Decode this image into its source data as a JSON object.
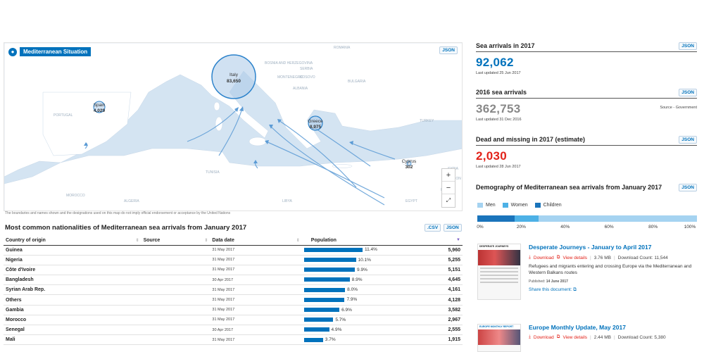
{
  "map": {
    "title": "Mediterranean Situation",
    "json_label": "JSON ",
    "disclaimer": "The boundaries and names shown and the designations used on this map do not imply official endorsement or acceptance by the United Nations",
    "zoom_in": "+",
    "zoom_out": "−",
    "fullscreen": "⤢",
    "country_labels": [
      "ROMANIA",
      "BOSNIA AND HERZEGOVINA",
      "SERBIA",
      "BULGARIA",
      "MONTENEGRO",
      "KOSOVO",
      "ALBANIA",
      "TURKEY",
      "PORTUGAL",
      "TUNISIA",
      "MOROCCO",
      "ALGERIA",
      "LIBYA",
      "EGYPT",
      "SYRIA",
      "LEBANON",
      "ISRAEL"
    ],
    "bubbles": [
      {
        "name": "Italy",
        "value": "83,650"
      },
      {
        "name": "Spain",
        "value": "4,029"
      },
      {
        "name": "Greece",
        "value": "8,975"
      },
      {
        "name": "Cyprus",
        "value": "302"
      }
    ]
  },
  "table": {
    "title": "Most common nationalities of Mediterranean sea arrivals from January 2017",
    "csv_label": ".CSV ",
    "json_label": "JSON ",
    "headers": {
      "country": "Country of origin",
      "source": "Source",
      "date": "Data date",
      "population": "Population"
    },
    "rows": [
      {
        "country": "Guinea",
        "date": "31 May 2017",
        "pct": "11.4%",
        "pct_value": 11.4,
        "pop": "5,960"
      },
      {
        "country": "Nigeria",
        "date": "31 May 2017",
        "pct": "10.1%",
        "pct_value": 10.1,
        "pop": "5,255"
      },
      {
        "country": "Côte d'Ivoire",
        "date": "31 May 2017",
        "pct": "9.9%",
        "pct_value": 9.9,
        "pop": "5,151"
      },
      {
        "country": "Bangladesh",
        "date": "30 Apr 2017",
        "pct": "8.9%",
        "pct_value": 8.9,
        "pop": "4,645"
      },
      {
        "country": "Syrian Arab Rep.",
        "date": "31 May 2017",
        "pct": "8.0%",
        "pct_value": 8.0,
        "pop": "4,161"
      },
      {
        "country": "Others",
        "date": "31 May 2017",
        "pct": "7.9%",
        "pct_value": 7.9,
        "pop": "4,128"
      },
      {
        "country": "Gambia",
        "date": "31 May 2017",
        "pct": "6.9%",
        "pct_value": 6.9,
        "pop": "3,582"
      },
      {
        "country": "Morocco",
        "date": "31 May 2017",
        "pct": "5.7%",
        "pct_value": 5.7,
        "pop": "2,967"
      },
      {
        "country": "Senegal",
        "date": "30 Apr 2017",
        "pct": "4.9%",
        "pct_value": 4.9,
        "pop": "2,555"
      },
      {
        "country": "Mali",
        "date": "31 May 2017",
        "pct": "3.7%",
        "pct_value": 3.7,
        "pop": "1,915"
      }
    ]
  },
  "stats": {
    "arrivals_2017": {
      "title": "Sea arrivals in 2017",
      "json": "JSON ",
      "value": "92,062",
      "updated": "Last updated 25 Jun 2017",
      "color": "#0072bc"
    },
    "arrivals_2016": {
      "title": "2016 sea arrivals",
      "json": "JSON ",
      "value": "362,753",
      "updated": "Last updated 31 Dec 2016",
      "source": "Source - Government",
      "color": "#888888"
    },
    "dead_missing": {
      "title": "Dead and missing in 2017 (estimate)",
      "json": "JSON ",
      "value": "2,030",
      "updated": "Last updated 28 Jun 2017",
      "color": "#e2231a"
    }
  },
  "demography": {
    "title": "Demography of Mediterranean sea arrivals from January 2017",
    "json": "JSON ",
    "legend": [
      {
        "label": "Men",
        "color": "#a5d3f1"
      },
      {
        "label": "Women",
        "color": "#4db1e6"
      },
      {
        "label": "Children",
        "color": "#1a74bb"
      }
    ],
    "ticks": [
      "0%",
      "20%",
      "40%",
      "60%",
      "80%",
      "100%"
    ]
  },
  "chart_data": {
    "type": "bar",
    "title": "Demography of Mediterranean sea arrivals from January 2017",
    "categories": [
      "Children",
      "Women",
      "Men"
    ],
    "values": [
      17,
      11,
      72
    ],
    "xlim": [
      0,
      100
    ],
    "x_ticks": [
      "0%",
      "20%",
      "40%",
      "60%",
      "80%",
      "100%"
    ],
    "legend": "top-left"
  },
  "documents": [
    {
      "title": "Desperate Journeys - January to April 2017",
      "download": "Download",
      "view": "View details",
      "size": "3.76 MB",
      "count": "Download Count: 11,544",
      "description": "Refugees and migrants entering and crossing Europe via the Mediterranean and Western Balkans routes",
      "published_label": "Published:",
      "published_date": "14 June 2017",
      "share": "Share this document:",
      "thumb_heading": "DESPERATE JOURNEYS"
    },
    {
      "title": "Europe Monthly Update, May 2017",
      "download": "Download",
      "view": "View details",
      "size": "2.44 MB",
      "count": "Download Count: 5,380",
      "thumb_heading": "EUROPE MONTHLY REPORT"
    }
  ]
}
